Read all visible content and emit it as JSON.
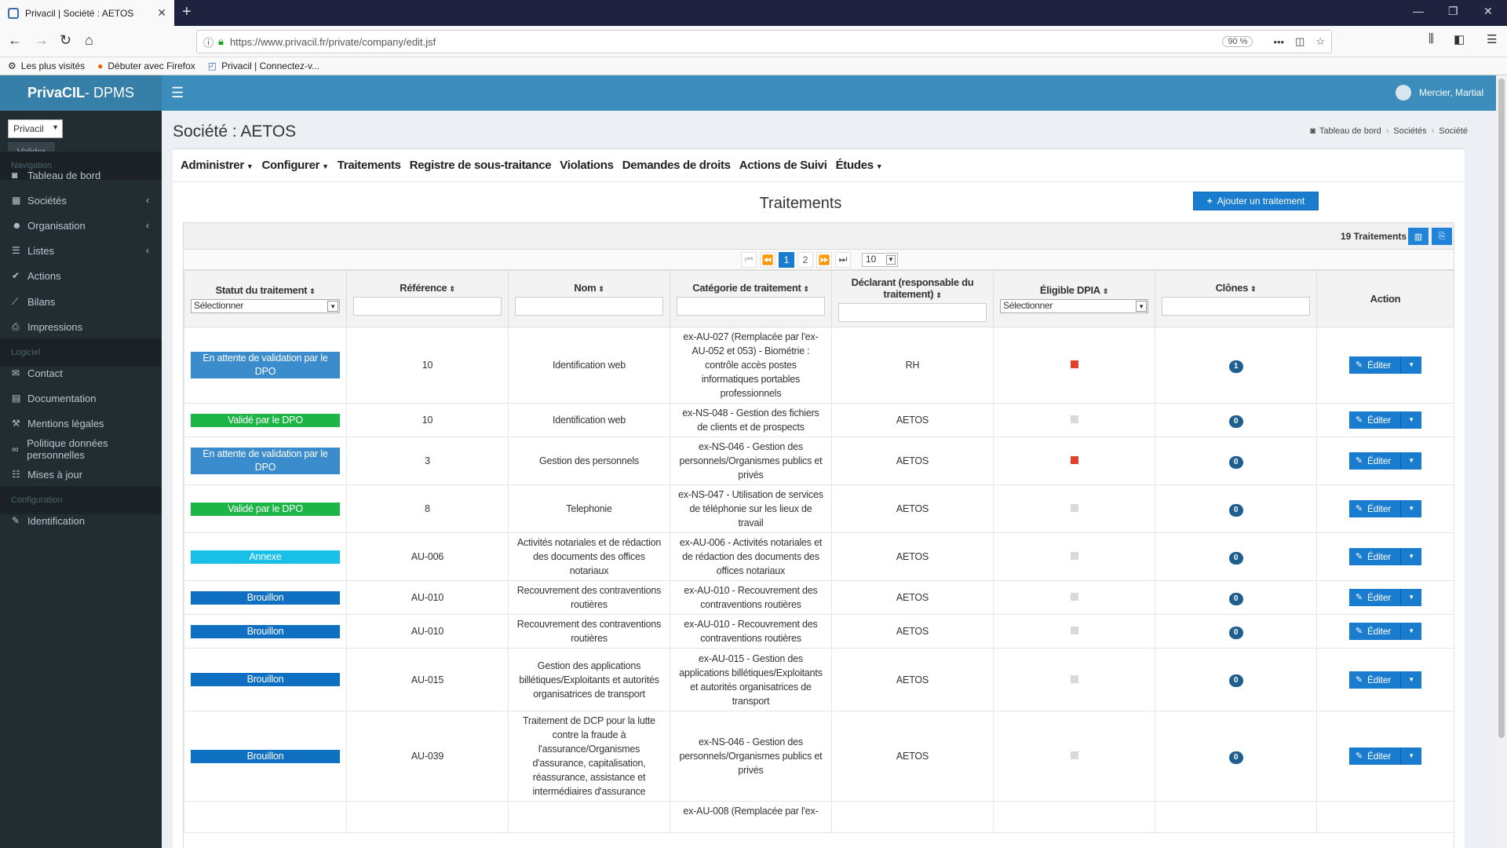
{
  "browser": {
    "tab_title": "Privacil | Société : AETOS",
    "url": "https://www.privacil.fr/private/company/edit.jsf",
    "zoom": "90 %",
    "bookmarks": [
      "Les plus visités",
      "Débuter avec Firefox",
      "Privacil | Connectez-v..."
    ]
  },
  "app": {
    "brand_bold": "PrivaCIL",
    "brand_rest": " - DPMS",
    "user_name": "Mercier, Martial"
  },
  "sidebar": {
    "company_value": "Privacil",
    "validate_label": "Valider",
    "sections": [
      {
        "label": "Navigation",
        "items": [
          {
            "label": "Tableau de bord",
            "icon": "dashboard-icon",
            "glyph": "◙",
            "chev": false
          },
          {
            "label": "Sociétés",
            "icon": "building-icon",
            "glyph": "▦",
            "chev": true
          },
          {
            "label": "Organisation",
            "icon": "users-icon",
            "glyph": "☻",
            "chev": true
          },
          {
            "label": "Listes",
            "icon": "list-icon",
            "glyph": "☰",
            "chev": true
          },
          {
            "label": "Actions",
            "icon": "check-icon",
            "glyph": "✔",
            "chev": false
          },
          {
            "label": "Bilans",
            "icon": "chart-icon",
            "glyph": "⟋",
            "chev": false
          },
          {
            "label": "Impressions",
            "icon": "print-icon",
            "glyph": "⎙",
            "chev": false
          }
        ]
      },
      {
        "label": "Logiciel",
        "items": [
          {
            "label": "Contact",
            "icon": "envelope-icon",
            "glyph": "✉",
            "chev": false
          },
          {
            "label": "Documentation",
            "icon": "book-icon",
            "glyph": "▤",
            "chev": false
          },
          {
            "label": "Mentions légales",
            "icon": "gavel-icon",
            "glyph": "⚒",
            "chev": false
          },
          {
            "label": "Politique données personnelles",
            "icon": "link-icon",
            "glyph": "∞",
            "chev": false
          },
          {
            "label": "Mises à jour",
            "icon": "updates-icon",
            "glyph": "☷",
            "chev": false
          }
        ]
      },
      {
        "label": "Configuration",
        "items": [
          {
            "label": "Identification",
            "icon": "wrench-icon",
            "glyph": "✎",
            "chev": false
          }
        ]
      }
    ]
  },
  "page": {
    "title": "Société : AETOS",
    "breadcrumb": [
      "Tableau de bord",
      "Sociétés",
      "Société"
    ]
  },
  "menu": [
    {
      "label": "Administrer",
      "dropdown": true
    },
    {
      "label": "Configurer",
      "dropdown": true
    },
    {
      "label": "Traitements",
      "dropdown": false
    },
    {
      "label": "Registre de sous-traitance",
      "dropdown": false
    },
    {
      "label": "Violations",
      "dropdown": false
    },
    {
      "label": "Demandes de droits",
      "dropdown": false
    },
    {
      "label": "Actions de Suivi",
      "dropdown": false
    },
    {
      "label": "Études",
      "dropdown": true
    }
  ],
  "panel": {
    "title": "Traitements",
    "add_button": "Ajouter un traitement",
    "count": "19 Traitements",
    "pages": [
      "1",
      "2"
    ],
    "rows_per_page": "10"
  },
  "table": {
    "columns": [
      "Statut du traitement",
      "Référence",
      "Nom",
      "Catégorie de traitement",
      "Déclarant (responsable du traitement)",
      "Éligible DPIA",
      "Clônes",
      "Action"
    ],
    "select_placeholder": "Sélectionner",
    "edit_label": "Éditer",
    "rows": [
      {
        "status": "En attente de validation par le DPO",
        "status_type": "wait",
        "ref": "10",
        "name": "Identification web",
        "category": "ex-AU-027 (Remplacée par l'ex-AU-052 et 053) - Biométrie : contrôle accès postes informatiques portables professionnels",
        "declarant": "RH",
        "dpia": true,
        "clones": "1"
      },
      {
        "status": "Validé par le DPO",
        "status_type": "valid",
        "ref": "10",
        "name": "Identification web",
        "category": "ex-NS-048 - Gestion des fichiers de clients et de prospects",
        "declarant": "AETOS",
        "dpia": false,
        "clones": "0"
      },
      {
        "status": "En attente de validation par le DPO",
        "status_type": "wait",
        "ref": "3",
        "name": "Gestion des personnels",
        "category": "ex-NS-046 - Gestion des personnels/Organismes publics et privés",
        "declarant": "AETOS",
        "dpia": true,
        "clones": "0"
      },
      {
        "status": "Validé par le DPO",
        "status_type": "valid",
        "ref": "8",
        "name": "Telephonie",
        "category": "ex-NS-047 - Utilisation de services de téléphonie sur les lieux de travail",
        "declarant": "AETOS",
        "dpia": false,
        "clones": "0"
      },
      {
        "status": "Annexe",
        "status_type": "annexe",
        "ref": "AU-006",
        "name": "Activités notariales et de rédaction des documents des offices notariaux",
        "category": "ex-AU-006 - Activités notariales et de rédaction des documents des offices notariaux",
        "declarant": "AETOS",
        "dpia": false,
        "clones": "0"
      },
      {
        "status": "Brouillon",
        "status_type": "draft",
        "ref": "AU-010",
        "name": "Recouvrement des contraventions routières",
        "category": "ex-AU-010 - Recouvrement des contraventions routières",
        "declarant": "AETOS",
        "dpia": false,
        "clones": "0"
      },
      {
        "status": "Brouillon",
        "status_type": "draft",
        "ref": "AU-010",
        "name": "Recouvrement des contraventions routières",
        "category": "ex-AU-010 - Recouvrement des contraventions routières",
        "declarant": "AETOS",
        "dpia": false,
        "clones": "0"
      },
      {
        "status": "Brouillon",
        "status_type": "draft",
        "ref": "AU-015",
        "name": "Gestion des applications billétiques/Exploitants et autorités organisatrices de transport",
        "category": "ex-AU-015 - Gestion des applications billétiques/Exploitants et autorités organisatrices de transport",
        "declarant": "AETOS",
        "dpia": false,
        "clones": "0"
      },
      {
        "status": "Brouillon",
        "status_type": "draft",
        "ref": "AU-039",
        "name": "Traitement de DCP pour la lutte contre la fraude à l'assurance/Organismes d'assurance, capitalisation, réassurance, assistance et intermédiaires d'assurance",
        "category": "ex-NS-046 - Gestion des personnels/Organismes publics et privés",
        "declarant": "AETOS",
        "dpia": false,
        "clones": "0"
      },
      {
        "status": "",
        "status_type": "none",
        "ref": "",
        "name": "",
        "category": "ex-AU-008 (Remplacée par l'ex-",
        "declarant": "",
        "dpia": null,
        "clones": ""
      }
    ]
  },
  "colors": {
    "header": "#3c8dbc",
    "sidebar": "#222d32",
    "primary_button": "#1a7ccf",
    "status_wait": "#3a8ccc",
    "status_valid": "#1eb547",
    "status_annexe": "#18c0e8",
    "status_draft": "#0f6fc1",
    "dpia_on": "#e0412e"
  }
}
